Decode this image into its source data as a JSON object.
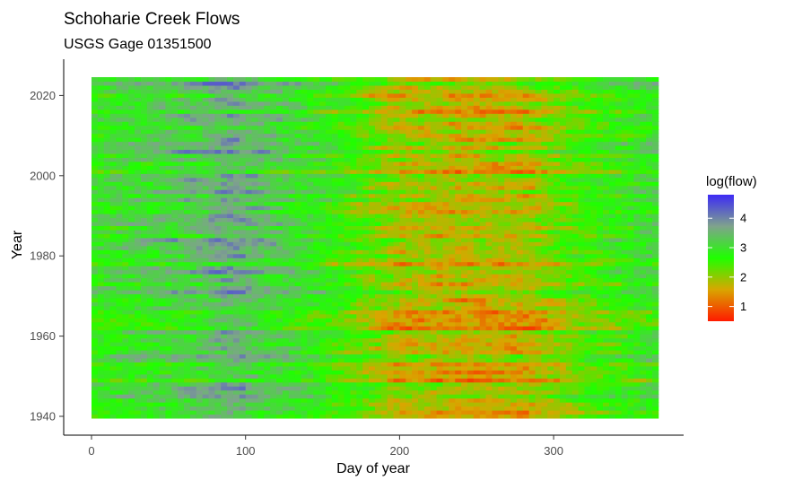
{
  "chart_data": {
    "type": "heatmap",
    "title": "Schoharie Creek Flows",
    "subtitle": "USGS Gage 01351500",
    "xlabel": "Day of year",
    "ylabel": "Year",
    "xlim": [
      0,
      366
    ],
    "ylim": [
      1940,
      2024
    ],
    "x_ticks": [
      0,
      100,
      200,
      300
    ],
    "y_ticks": [
      1940,
      1960,
      1980,
      2000,
      2020
    ],
    "x_tick_labels": [
      "0",
      "100",
      "200",
      "300"
    ],
    "y_tick_labels": [
      "1940",
      "1960",
      "1980",
      "2000",
      "2020"
    ],
    "legend": {
      "title": "log(flow)",
      "position": "right",
      "range": [
        0.5,
        4.8
      ],
      "breaks": [
        1,
        2,
        3,
        4
      ],
      "break_labels": [
        "1",
        "2",
        "3",
        "4"
      ],
      "colors": [
        "#ff1a00",
        "#d9a600",
        "#1fff00",
        "#7fa38c",
        "#3d2bf5"
      ]
    },
    "cell_granularity": {
      "x_step_days": 4,
      "y_step_years": 1
    },
    "approx_seasonal_log_flow": {
      "day": [
        0,
        60,
        90,
        120,
        160,
        200,
        240,
        280,
        320,
        366
      ],
      "value": [
        2.9,
        3.2,
        3.6,
        3.2,
        2.6,
        1.9,
        1.7,
        1.8,
        2.5,
        3.0
      ]
    },
    "notable_dry_years": [
      1941,
      1949,
      1953,
      1957,
      1962,
      1963,
      1964,
      1965,
      1966,
      1978,
      1991,
      1995,
      2001,
      2016,
      2020
    ],
    "notable_wet_years": [
      1945,
      1955,
      1971,
      1975,
      1976,
      1977,
      1996,
      2006,
      2008,
      2011,
      2017,
      2023
    ],
    "grid": false
  }
}
